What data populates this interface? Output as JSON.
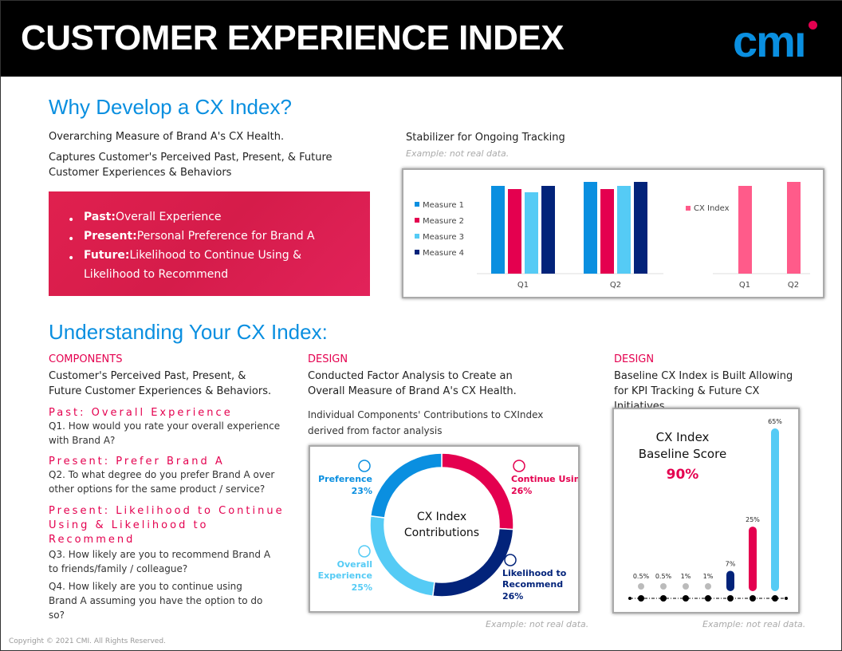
{
  "header": {
    "title": "CUSTOMER EXPERIENCE INDEX",
    "logo": "cmi"
  },
  "why": {
    "heading": "Why Develop a CX Index?",
    "line1": "Overarching Measure of Brand A's CX Health.",
    "line2a": "Captures Customer's Perceived Past, Present, & Future",
    "line2b": "Customer Experiences & Behaviors",
    "bullets": [
      {
        "label": "Past:",
        "text": "Overall Experience"
      },
      {
        "label": "Present:",
        "text": "Personal Preference for Brand A"
      },
      {
        "label": "Future:",
        "text": "Likelihood to Continue Using & Likelihood to Recommend"
      }
    ]
  },
  "tracking": {
    "title": "Stabilizer for Ongoing Tracking",
    "note": "Example: not real data."
  },
  "understanding": {
    "heading": "Understanding Your CX Index:",
    "components": {
      "label": "COMPONENTS",
      "text": "Customer's Perceived Past, Present, & Future Customer Experiences & Behaviors.",
      "items": [
        {
          "title": "Past: Overall Experience",
          "q": [
            "Q1. How would you rate your overall experience with Brand A?"
          ]
        },
        {
          "title": "Present: Prefer Brand A",
          "q": [
            "Q2. To what degree do you prefer Brand A over other options for the same product / service?"
          ]
        },
        {
          "title": "Present: Likelihood to Continue Using &  Likelihood to Recommend",
          "q": [
            "Q3. How likely are you to recommend Brand A to friends/family / colleague?",
            "Q4. How likely are you to continue using Brand A assuming  you have the option to do so?"
          ]
        }
      ]
    },
    "design1": {
      "label": "DESIGN",
      "text": "Conducted Factor Analysis to Create an Overall Measure of Brand A's CX Health.",
      "sub": "Individual Components' Contributions to CXIndex derived from factor analysis",
      "note": "Example: not real data."
    },
    "design2": {
      "label": "DESIGN",
      "text": "Baseline CX Index is Built Allowing for KPI Tracking & Future CX Initiatives.",
      "note": "Example: not real data."
    }
  },
  "copyright": "Copyright © 2021 CMI. All Rights Reserved.",
  "chart_data": [
    {
      "type": "bar",
      "categories": [
        "Q1",
        "Q2"
      ],
      "series": [
        {
          "name": "Measure 1",
          "color": "#0a8fe0",
          "values": [
            110,
            115
          ]
        },
        {
          "name": "Measure 2",
          "color": "#e4004f",
          "values": [
            106,
            106
          ]
        },
        {
          "name": "Measure 3",
          "color": "#55cbf5",
          "values": [
            102,
            110
          ]
        },
        {
          "name": "Measure 4",
          "color": "#02237a",
          "values": [
            110,
            115
          ]
        }
      ],
      "legend": "left",
      "grid": false
    },
    {
      "type": "bar",
      "categories": [
        "Q1",
        "Q2"
      ],
      "series": [
        {
          "name": "CX Index",
          "color": "#ff5b8a",
          "values": [
            110,
            115
          ]
        }
      ],
      "legend": "left",
      "grid": false
    },
    {
      "type": "pie",
      "title": "CX Index Contributions",
      "slices": [
        {
          "label": "Continue Using",
          "value": 26,
          "display": "26%",
          "color": "#e4004f",
          "icon": "refresh-icon"
        },
        {
          "label": "Likelihood to Recommend",
          "value": 26,
          "display": "26%",
          "color": "#02237a",
          "icon": "star-chat-icon"
        },
        {
          "label": "Overall Experience",
          "value": 25,
          "display": "25%",
          "color": "#55cbf5",
          "icon": "heart-icon"
        },
        {
          "label": "Preference",
          "value": 23,
          "display": "23%",
          "color": "#0a8fe0",
          "icon": "thumbs-up-icon"
        }
      ]
    },
    {
      "type": "bar",
      "title": "CX Index Baseline Score",
      "score": "90%",
      "values": [
        0.5,
        0.5,
        1,
        1,
        7,
        25,
        65
      ],
      "labels": [
        "0.5%",
        "0.5%",
        "1%",
        "1%",
        "7%",
        "25%",
        "65%"
      ],
      "colors": [
        "#bbbbbb",
        "#bbbbbb",
        "#bbbbbb",
        "#bbbbbb",
        "#02237a",
        "#e4004f",
        "#55cbf5"
      ]
    }
  ]
}
